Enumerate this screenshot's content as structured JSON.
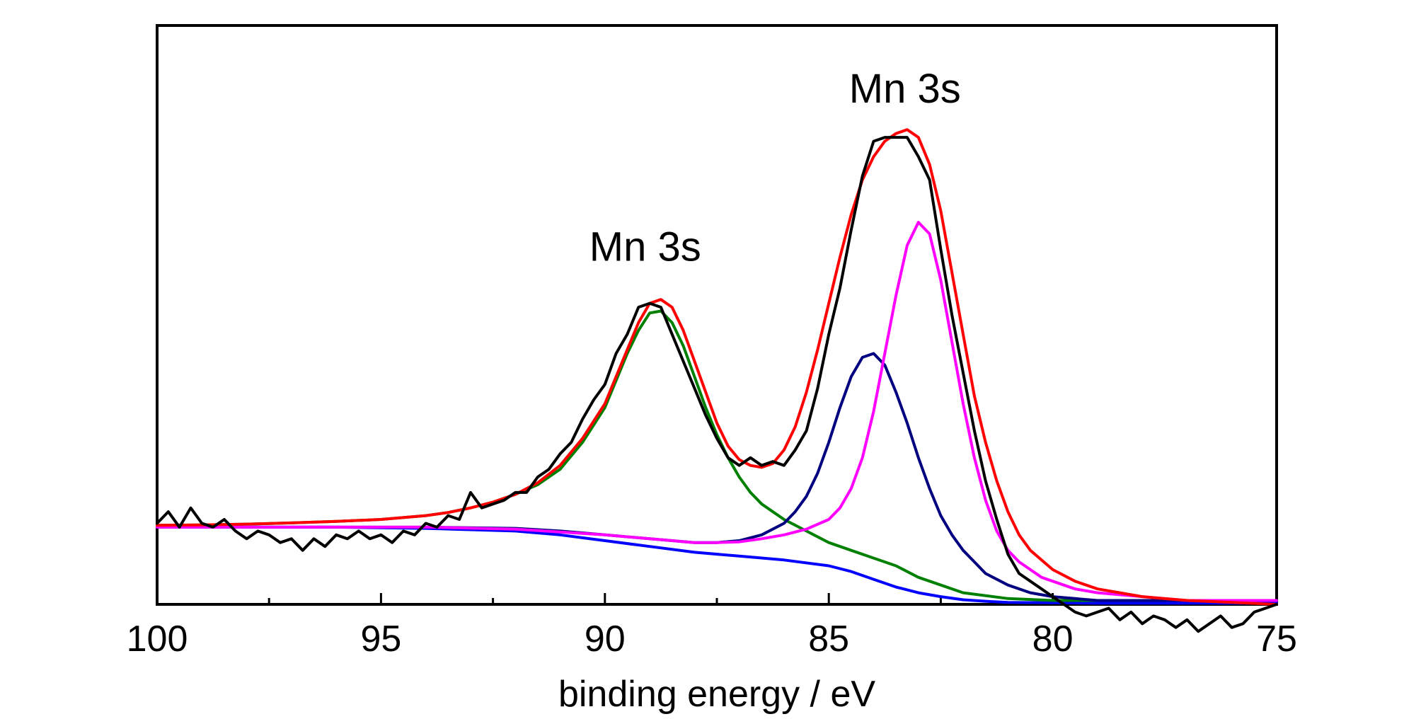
{
  "chart_data": {
    "type": "line",
    "title": "",
    "xlabel": "binding energy / eV",
    "ylabel": "",
    "xlim": [
      100,
      75
    ],
    "x_reversed": true,
    "ylim": [
      -0.2,
      1.3
    ],
    "y_ticks_shown": false,
    "grid": false,
    "legend": "none",
    "x_ticks": [
      100,
      95,
      90,
      85,
      80,
      75
    ],
    "x_tick_labels": [
      "100",
      "95",
      "90",
      "85",
      "80",
      "75"
    ],
    "x_minor_ticks": [
      97.5,
      92.5,
      87.5,
      82.5,
      77.5
    ],
    "annotations": [
      {
        "text": "Mn 3s",
        "x": 89.1,
        "y": 0.69
      },
      {
        "text": "Mn 3s",
        "x": 83.3,
        "y": 1.1
      }
    ],
    "series": [
      {
        "role": "measured",
        "color": "#000000",
        "x": [
          100.0,
          99.75,
          99.5,
          99.25,
          99.0,
          98.75,
          98.5,
          98.25,
          98.0,
          97.75,
          97.5,
          97.25,
          97.0,
          96.75,
          96.5,
          96.25,
          96.0,
          95.75,
          95.5,
          95.25,
          95.0,
          94.75,
          94.5,
          94.25,
          94.0,
          93.75,
          93.5,
          93.25,
          93.0,
          92.75,
          92.5,
          92.25,
          92.0,
          91.75,
          91.5,
          91.25,
          91.0,
          90.75,
          90.5,
          90.25,
          90.0,
          89.75,
          89.5,
          89.25,
          89.0,
          88.75,
          88.5,
          88.25,
          88.0,
          87.75,
          87.5,
          87.25,
          87.0,
          86.75,
          86.5,
          86.25,
          86.0,
          85.75,
          85.5,
          85.25,
          85.0,
          84.75,
          84.5,
          84.25,
          84.0,
          83.75,
          83.5,
          83.25,
          83.0,
          82.75,
          82.5,
          82.25,
          82.0,
          81.75,
          81.5,
          81.25,
          81.0,
          80.75,
          80.5,
          80.25,
          80.0,
          79.75,
          79.5,
          79.25,
          79.0,
          78.75,
          78.5,
          78.25,
          78.0,
          77.75,
          77.5,
          77.25,
          77.0,
          76.75,
          76.5,
          76.25,
          76.0,
          75.75,
          75.5,
          75.25,
          75.0
        ],
        "values": [
          0.01,
          0.04,
          0.0,
          0.05,
          0.01,
          0.0,
          0.02,
          -0.01,
          -0.03,
          -0.01,
          -0.02,
          -0.04,
          -0.03,
          -0.06,
          -0.03,
          -0.05,
          -0.02,
          -0.03,
          -0.01,
          -0.03,
          -0.02,
          -0.04,
          -0.01,
          -0.02,
          0.01,
          0.0,
          0.03,
          0.02,
          0.09,
          0.05,
          0.06,
          0.07,
          0.09,
          0.09,
          0.13,
          0.15,
          0.19,
          0.22,
          0.28,
          0.33,
          0.37,
          0.45,
          0.5,
          0.57,
          0.58,
          0.57,
          0.5,
          0.43,
          0.36,
          0.29,
          0.23,
          0.18,
          0.16,
          0.18,
          0.16,
          0.17,
          0.16,
          0.2,
          0.25,
          0.36,
          0.5,
          0.62,
          0.77,
          0.91,
          1.0,
          1.01,
          1.01,
          1.01,
          0.96,
          0.9,
          0.72,
          0.55,
          0.4,
          0.25,
          0.12,
          0.02,
          -0.07,
          -0.12,
          -0.14,
          -0.16,
          -0.18,
          -0.2,
          -0.22,
          -0.23,
          -0.22,
          -0.21,
          -0.24,
          -0.22,
          -0.25,
          -0.23,
          -0.24,
          -0.26,
          -0.24,
          -0.27,
          -0.25,
          -0.23,
          -0.26,
          -0.25,
          -0.22,
          -0.21,
          -0.2
        ]
      },
      {
        "role": "envelope",
        "color": "#ff0000",
        "x": [
          100.0,
          99.0,
          98.0,
          97.0,
          96.0,
          95.0,
          94.0,
          93.5,
          93.0,
          92.5,
          92.0,
          91.5,
          91.0,
          90.5,
          90.0,
          89.75,
          89.5,
          89.25,
          89.0,
          88.75,
          88.5,
          88.25,
          88.0,
          87.75,
          87.5,
          87.25,
          87.0,
          86.75,
          86.5,
          86.25,
          86.0,
          85.75,
          85.5,
          85.25,
          85.0,
          84.75,
          84.5,
          84.25,
          84.0,
          83.75,
          83.5,
          83.25,
          83.0,
          82.75,
          82.5,
          82.25,
          82.0,
          81.75,
          81.5,
          81.25,
          81.0,
          80.75,
          80.5,
          80.0,
          79.5,
          79.0,
          78.5,
          78.0,
          77.0,
          76.0,
          75.0
        ],
        "values": [
          0.005,
          0.006,
          0.008,
          0.011,
          0.015,
          0.02,
          0.03,
          0.038,
          0.05,
          0.065,
          0.085,
          0.115,
          0.16,
          0.23,
          0.32,
          0.39,
          0.46,
          0.53,
          0.58,
          0.59,
          0.57,
          0.51,
          0.43,
          0.35,
          0.27,
          0.21,
          0.175,
          0.16,
          0.155,
          0.165,
          0.2,
          0.26,
          0.35,
          0.46,
          0.58,
          0.7,
          0.81,
          0.9,
          0.96,
          1.0,
          1.02,
          1.03,
          1.01,
          0.94,
          0.82,
          0.66,
          0.5,
          0.34,
          0.22,
          0.12,
          0.04,
          -0.02,
          -0.06,
          -0.11,
          -0.14,
          -0.16,
          -0.17,
          -0.18,
          -0.19,
          -0.195,
          -0.2
        ]
      },
      {
        "role": "component",
        "color": "#008000",
        "x": [
          100.0,
          99.0,
          98.0,
          97.0,
          96.0,
          95.0,
          94.0,
          93.5,
          93.0,
          92.5,
          92.0,
          91.5,
          91.0,
          90.5,
          90.0,
          89.75,
          89.5,
          89.25,
          89.0,
          88.75,
          88.5,
          88.25,
          88.0,
          87.75,
          87.5,
          87.25,
          87.0,
          86.75,
          86.5,
          86.0,
          85.5,
          85.0,
          84.5,
          84.0,
          83.5,
          83.0,
          82.5,
          82.0,
          81.0,
          80.0,
          79.0,
          78.0,
          77.0,
          76.0,
          75.0
        ],
        "values": [
          0.005,
          0.006,
          0.008,
          0.011,
          0.015,
          0.02,
          0.03,
          0.038,
          0.05,
          0.065,
          0.085,
          0.11,
          0.15,
          0.22,
          0.31,
          0.38,
          0.45,
          0.51,
          0.555,
          0.56,
          0.53,
          0.47,
          0.39,
          0.31,
          0.24,
          0.18,
          0.13,
          0.09,
          0.06,
          0.02,
          -0.01,
          -0.04,
          -0.06,
          -0.08,
          -0.1,
          -0.13,
          -0.15,
          -0.17,
          -0.185,
          -0.19,
          -0.19,
          -0.19,
          -0.19,
          -0.19,
          -0.19
        ]
      },
      {
        "role": "component",
        "color": "#000080",
        "x": [
          100.0,
          98.0,
          96.0,
          94.0,
          92.0,
          91.0,
          90.0,
          89.0,
          88.0,
          87.5,
          87.0,
          86.5,
          86.0,
          85.75,
          85.5,
          85.25,
          85.0,
          84.75,
          84.5,
          84.25,
          84.0,
          83.75,
          83.5,
          83.25,
          83.0,
          82.75,
          82.5,
          82.25,
          82.0,
          81.75,
          81.5,
          81.0,
          80.5,
          80.0,
          79.0,
          78.0,
          77.0,
          76.0,
          75.0
        ],
        "values": [
          0.0,
          0.0,
          0.0,
          0.0,
          -0.003,
          -0.01,
          -0.02,
          -0.03,
          -0.04,
          -0.04,
          -0.035,
          -0.02,
          0.01,
          0.04,
          0.08,
          0.14,
          0.22,
          0.31,
          0.39,
          0.44,
          0.45,
          0.42,
          0.35,
          0.27,
          0.18,
          0.1,
          0.03,
          -0.02,
          -0.06,
          -0.09,
          -0.12,
          -0.15,
          -0.17,
          -0.18,
          -0.19,
          -0.19,
          -0.19,
          -0.19,
          -0.19
        ]
      },
      {
        "role": "component",
        "color": "#ff00ff",
        "x": [
          100.0,
          98.0,
          96.0,
          94.0,
          92.0,
          90.0,
          89.0,
          88.0,
          87.5,
          87.0,
          86.5,
          86.0,
          85.5,
          85.0,
          84.75,
          84.5,
          84.25,
          84.0,
          83.75,
          83.5,
          83.25,
          83.0,
          82.75,
          82.5,
          82.25,
          82.0,
          81.75,
          81.5,
          81.25,
          81.0,
          80.75,
          80.5,
          80.25,
          80.0,
          79.5,
          79.0,
          78.0,
          77.0,
          76.0,
          75.0
        ],
        "values": [
          0.0,
          0.0,
          0.0,
          0.0,
          -0.005,
          -0.02,
          -0.03,
          -0.04,
          -0.04,
          -0.038,
          -0.03,
          -0.02,
          -0.005,
          0.02,
          0.05,
          0.1,
          0.18,
          0.3,
          0.45,
          0.6,
          0.73,
          0.79,
          0.76,
          0.64,
          0.48,
          0.32,
          0.18,
          0.07,
          -0.01,
          -0.06,
          -0.09,
          -0.11,
          -0.13,
          -0.14,
          -0.16,
          -0.17,
          -0.18,
          -0.19,
          -0.19,
          -0.19
        ]
      },
      {
        "role": "background",
        "color": "#0000ff",
        "x": [
          100.0,
          98.0,
          96.0,
          94.0,
          92.0,
          91.0,
          90.0,
          89.0,
          88.0,
          87.0,
          86.0,
          85.0,
          84.5,
          84.0,
          83.5,
          83.0,
          82.5,
          82.0,
          81.5,
          81.0,
          80.0,
          79.0,
          78.0,
          77.0,
          76.0,
          75.0
        ],
        "values": [
          0.0,
          0.0,
          0.0,
          -0.003,
          -0.01,
          -0.02,
          -0.035,
          -0.05,
          -0.065,
          -0.075,
          -0.085,
          -0.1,
          -0.115,
          -0.135,
          -0.155,
          -0.17,
          -0.18,
          -0.188,
          -0.192,
          -0.195,
          -0.196,
          -0.197,
          -0.197,
          -0.197,
          -0.197,
          -0.197
        ]
      }
    ]
  }
}
